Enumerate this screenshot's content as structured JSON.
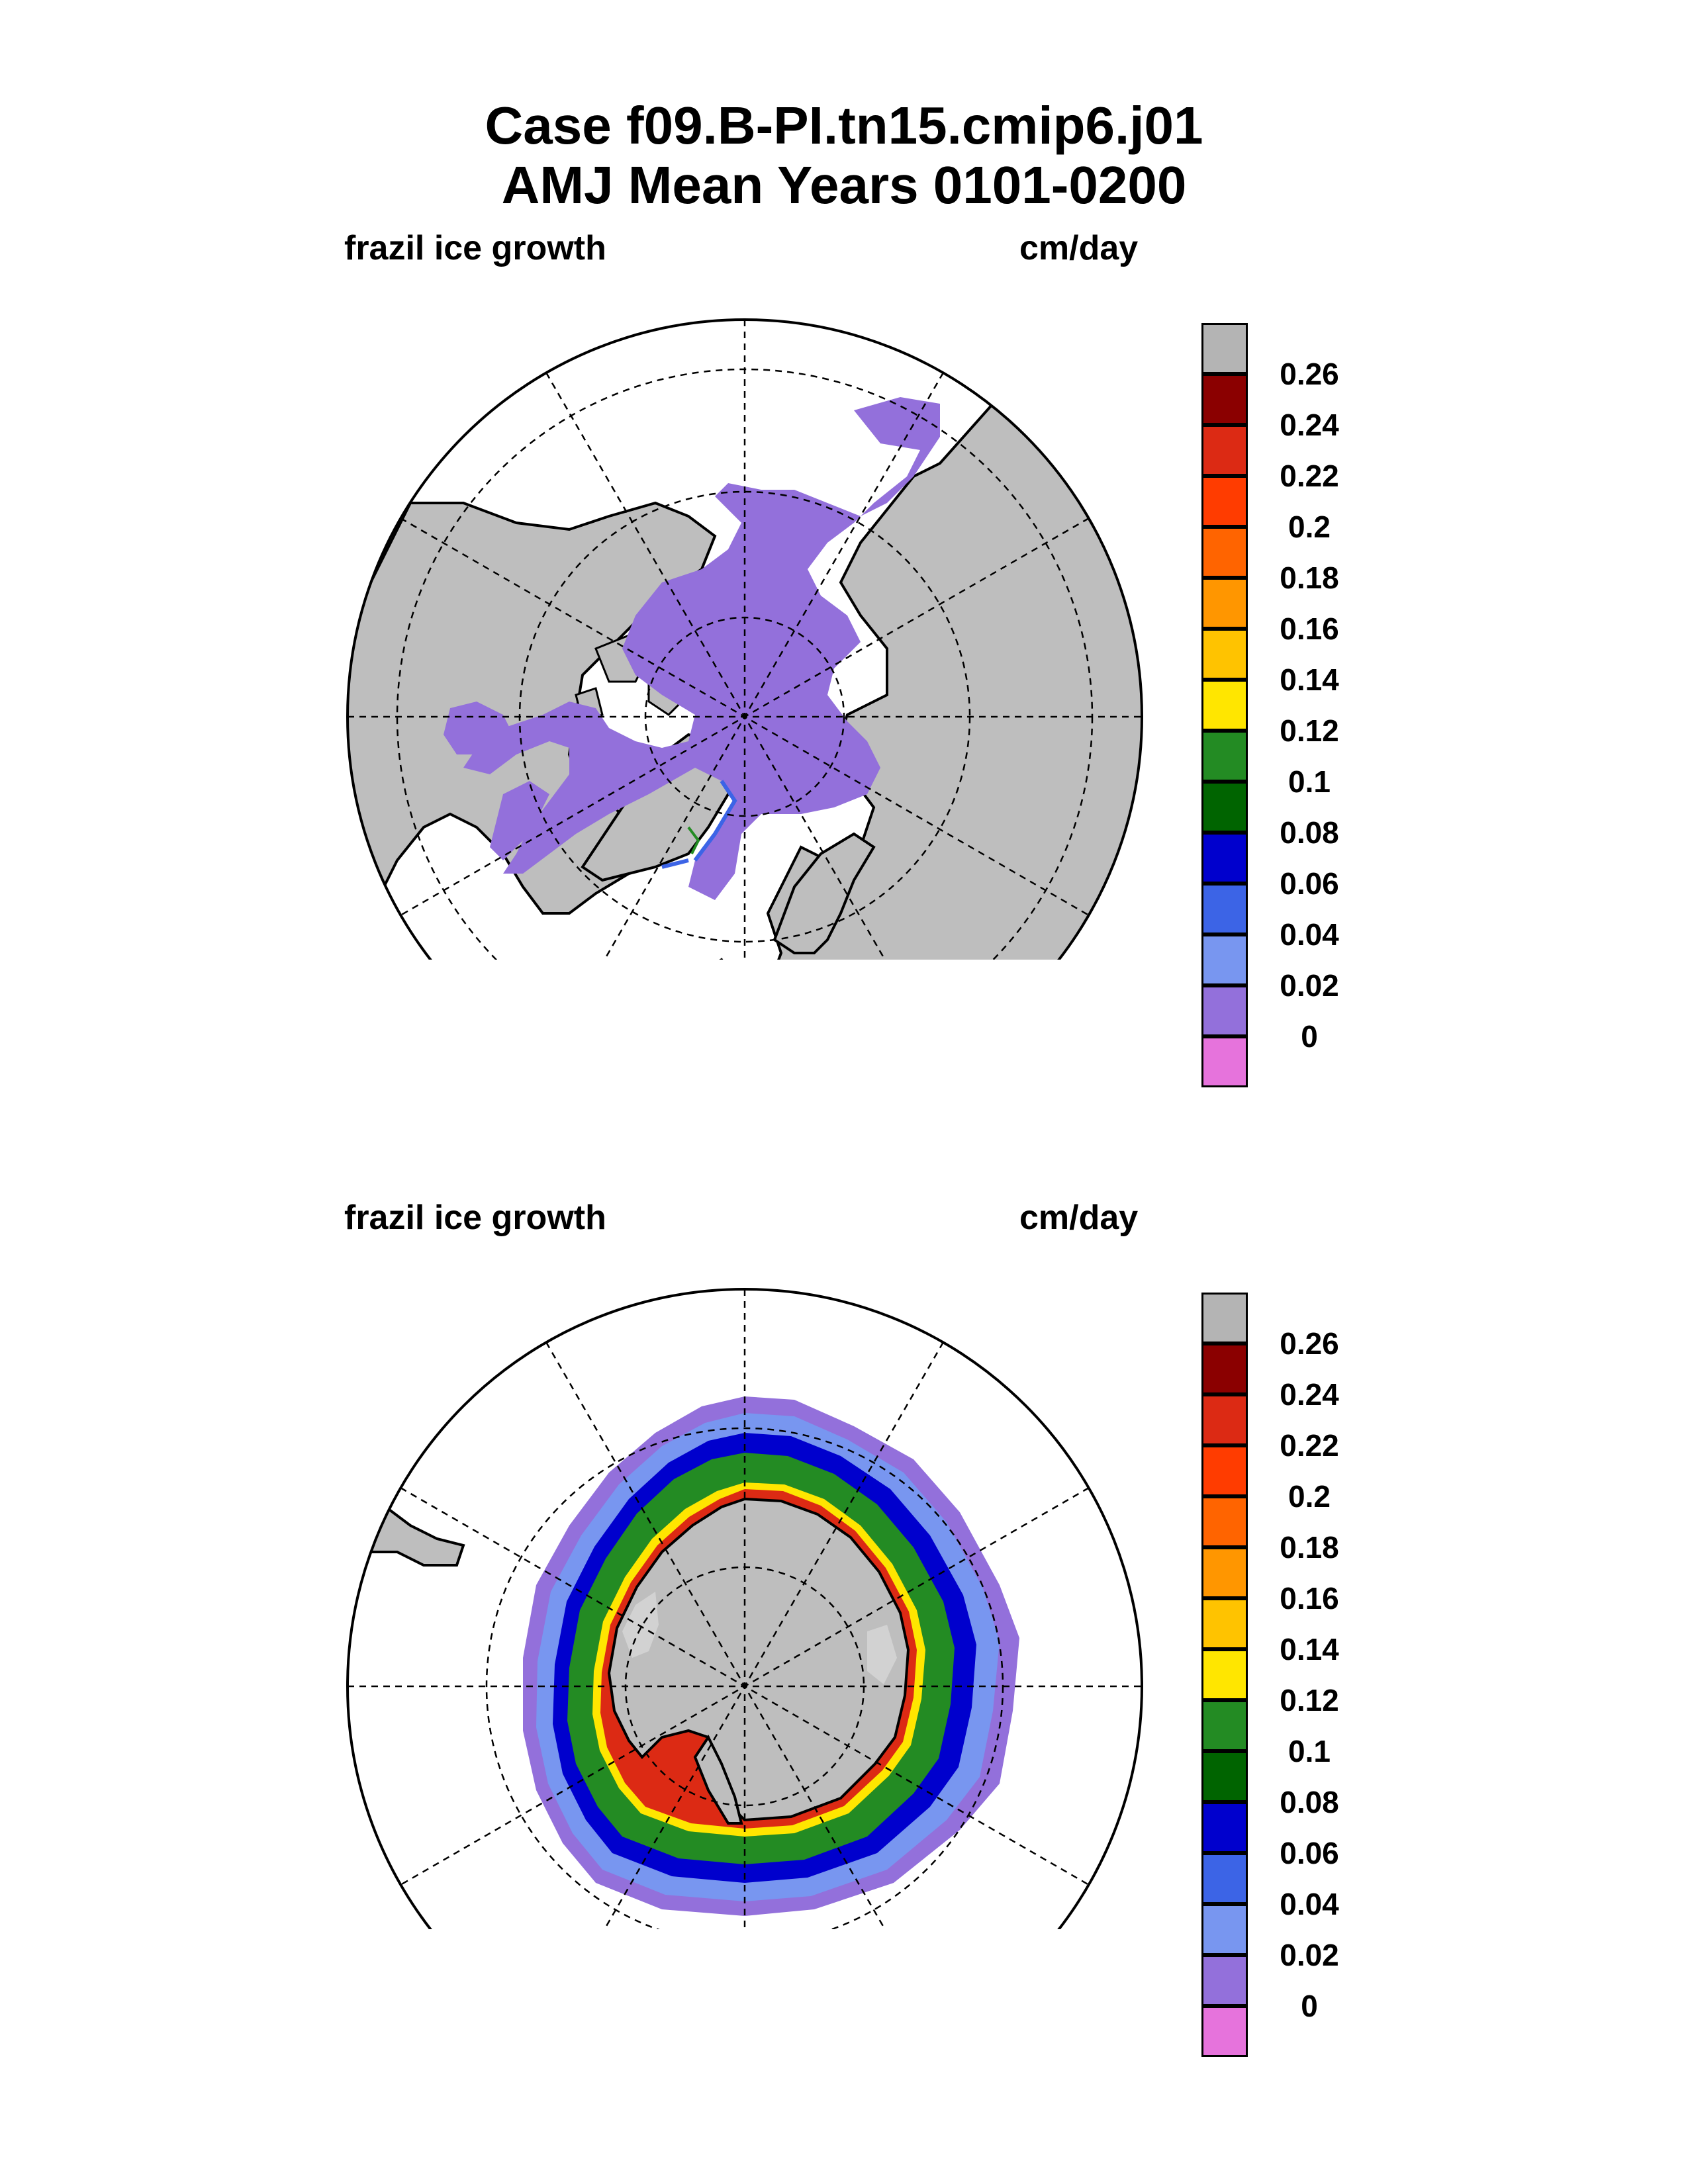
{
  "title": {
    "line1": "Case f09.B-PI.tn15.cmip6.j01",
    "line2": "AMJ Mean   Years 0101-0200"
  },
  "panels": [
    {
      "id": "north",
      "left_label": "frazil ice growth",
      "right_label": "cm/day",
      "hemisphere": "Northern Hemisphere polar stereographic"
    },
    {
      "id": "south",
      "left_label": "frazil ice growth",
      "right_label": "cm/day",
      "hemisphere": "Southern Hemisphere polar stereographic"
    }
  ],
  "colorbar": {
    "levels": [
      "0.26",
      "0.24",
      "0.22",
      "0.2",
      "0.18",
      "0.16",
      "0.14",
      "0.12",
      "0.1",
      "0.08",
      "0.06",
      "0.04",
      "0.02",
      "0"
    ],
    "colors": [
      "#b4b4b4",
      "#8b0000",
      "#dc2a14",
      "#ff3c00",
      "#ff6400",
      "#ff9600",
      "#ffc300",
      "#ffe600",
      "#238b23",
      "#006400",
      "#0000cd",
      "#3c64e6",
      "#7896f0",
      "#9370db",
      "#e673dc"
    ]
  },
  "palette": {
    "land": "#bebebe",
    "ocean": "#ffffff",
    "ice_min": "#9370db",
    "antarctic_ice_shelf": "#d2d2d2"
  }
}
